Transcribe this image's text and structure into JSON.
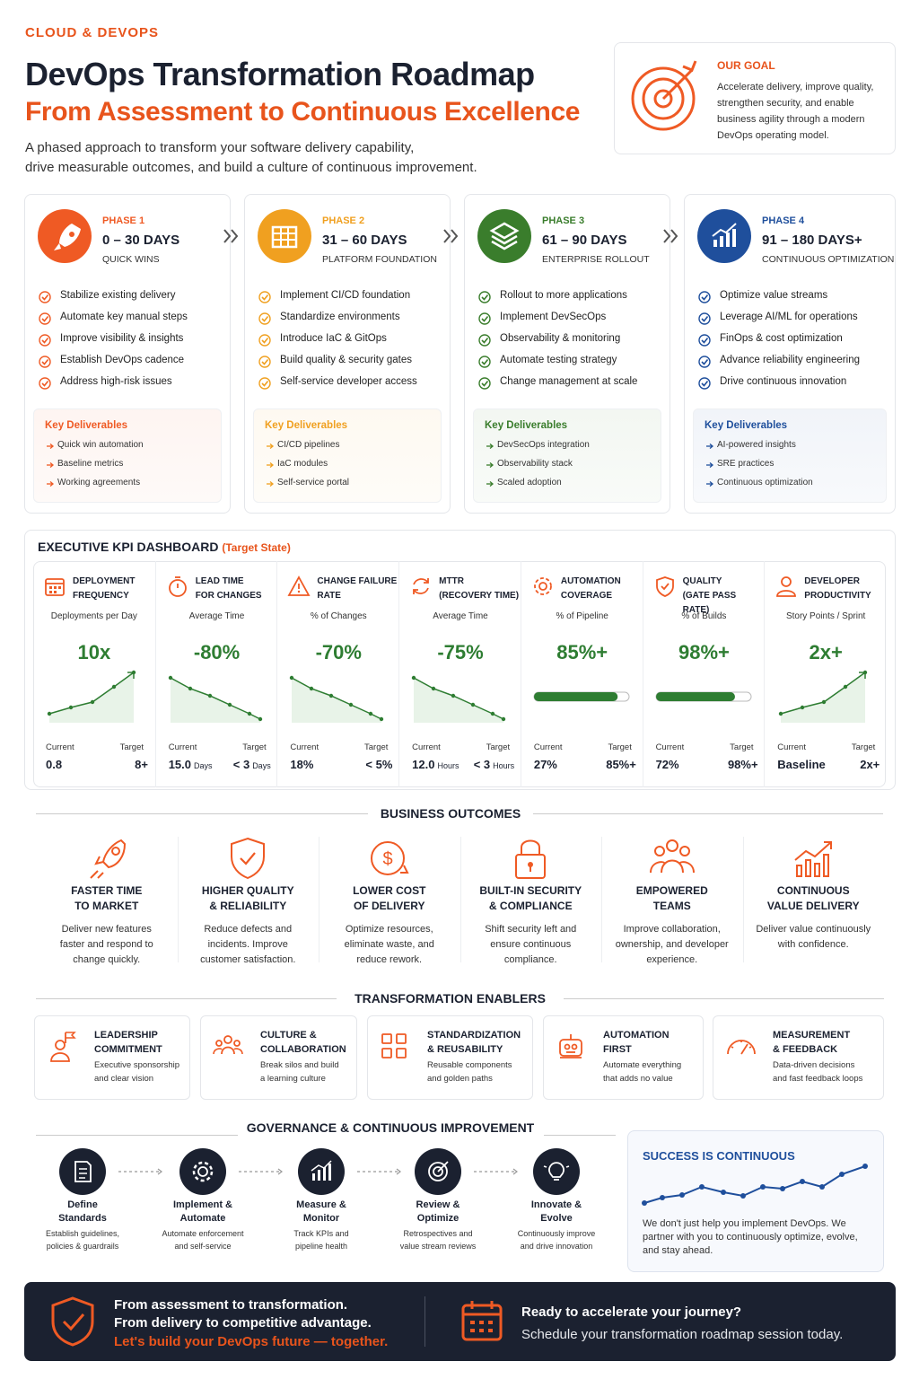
{
  "header": {
    "eyebrow": "CLOUD & DEVOPS",
    "title": "DevOps Transformation Roadmap",
    "subtitle": "From Assessment to Continuous Excellence",
    "description": [
      "A phased approach to transform your software delivery capability,",
      "drive measurable outcomes, and build a culture of continuous improvement."
    ]
  },
  "goal": {
    "label": "OUR GOAL",
    "text": "Accelerate delivery, improve quality, strengthen security, and enable business agility through a modern DevOps operating model."
  },
  "phases": [
    {
      "label": "PHASE 1",
      "days": "0 – 30 DAYS",
      "name": "QUICK WINS",
      "color": "#ef5a24",
      "items": [
        "Stabilize existing delivery",
        "Automate key manual steps",
        "Improve visibility & insights",
        "Establish DevOps cadence",
        "Address high-risk issues"
      ],
      "deliverables_title": "Key Deliverables",
      "deliverables": [
        "Quick win automation",
        "Baseline metrics",
        "Working agreements"
      ]
    },
    {
      "label": "PHASE 2",
      "days": "31 – 60 DAYS",
      "name": "PLATFORM FOUNDATION",
      "color": "#f0a020",
      "items": [
        "Implement CI/CD foundation",
        "Standardize environments",
        "Introduce IaC & GitOps",
        "Build quality & security gates",
        "Self-service developer access"
      ],
      "deliverables_title": "Key Deliverables",
      "deliverables": [
        "CI/CD pipelines",
        "IaC modules",
        "Self-service portal"
      ]
    },
    {
      "label": "PHASE 3",
      "days": "61 – 90 DAYS",
      "name": "ENTERPRISE ROLLOUT",
      "color": "#3a7d2c",
      "items": [
        "Rollout to more applications",
        "Implement DevSecOps",
        "Observability & monitoring",
        "Automate testing strategy",
        "Change management at scale"
      ],
      "deliverables_title": "Key Deliverables",
      "deliverables": [
        "DevSecOps integration",
        "Observability stack",
        "Scaled adoption"
      ]
    },
    {
      "label": "PHASE 4",
      "days": "91 – 180 DAYS+",
      "name": "CONTINUOUS OPTIMIZATION",
      "color": "#1f4f9c",
      "items": [
        "Optimize value streams",
        "Leverage AI/ML for operations",
        "FinOps & cost optimization",
        "Advance reliability engineering",
        "Drive continuous innovation"
      ],
      "deliverables_title": "Key Deliverables",
      "deliverables": [
        "AI-powered insights",
        "SRE practices",
        "Continuous optimization"
      ]
    }
  ],
  "kpi": {
    "title": "EXECUTIVE KPI DASHBOARD",
    "title_note": "(Target State)",
    "current_label": "Current",
    "target_label": "Target",
    "cards": [
      {
        "title": [
          "DEPLOYMENT",
          "FREQUENCY"
        ],
        "subtitle": "Deployments per Day",
        "headline": "10x",
        "current": "0.8",
        "target": "8+"
      },
      {
        "title": [
          "LEAD TIME",
          "FOR CHANGES"
        ],
        "subtitle": "Average Time",
        "headline": "-80%",
        "current": "15.0",
        "current_unit": "Days",
        "target": "< 3",
        "target_unit": "Days"
      },
      {
        "title": [
          "CHANGE FAILURE",
          "RATE"
        ],
        "subtitle": "% of Changes",
        "headline": "-70%",
        "current": "18%",
        "target": "< 5%"
      },
      {
        "title": [
          "MTTR",
          "(RECOVERY TIME)"
        ],
        "subtitle": "Average Time",
        "headline": "-75%",
        "current": "12.0",
        "current_unit": "Hours",
        "target": "< 3",
        "target_unit": "Hours"
      },
      {
        "title": [
          "AUTOMATION",
          "COVERAGE"
        ],
        "subtitle": "% of Pipeline",
        "headline": "85%+",
        "current": "27%",
        "target": "85%+"
      },
      {
        "title": [
          "QUALITY",
          "(GATE PASS RATE)"
        ],
        "subtitle": "% of Builds",
        "headline": "98%+",
        "current": "72%",
        "target": "98%+"
      },
      {
        "title": [
          "DEVELOPER",
          "PRODUCTIVITY"
        ],
        "subtitle": "Story Points / Sprint",
        "headline": "2x+",
        "current": "Baseline",
        "target": "2x+"
      }
    ]
  },
  "outcomes": {
    "title": "BUSINESS OUTCOMES",
    "items": [
      {
        "title": [
          "FASTER TIME",
          "TO MARKET"
        ],
        "text": "Deliver new features faster and respond to change quickly."
      },
      {
        "title": [
          "HIGHER QUALITY",
          "& RELIABILITY"
        ],
        "text": "Reduce defects and incidents. Improve customer satisfaction."
      },
      {
        "title": [
          "LOWER COST",
          "OF DELIVERY"
        ],
        "text": "Optimize resources, eliminate waste, and reduce rework."
      },
      {
        "title": [
          "BUILT-IN SECURITY",
          "& COMPLIANCE"
        ],
        "text": "Shift security left and ensure continuous compliance."
      },
      {
        "title": [
          "EMPOWERED",
          "TEAMS"
        ],
        "text": "Improve collaboration, ownership, and developer experience."
      },
      {
        "title": [
          "CONTINUOUS",
          "VALUE DELIVERY"
        ],
        "text": "Deliver value continuously with confidence."
      }
    ]
  },
  "enablers": {
    "title": "TRANSFORMATION ENABLERS",
    "items": [
      {
        "title": [
          "LEADERSHIP",
          "COMMITMENT"
        ],
        "text": [
          "Executive sponsorship",
          "and clear vision"
        ]
      },
      {
        "title": [
          "CULTURE &",
          "COLLABORATION"
        ],
        "text": [
          "Break silos and build",
          "a learning culture"
        ]
      },
      {
        "title": [
          "STANDARDIZATION",
          "& REUSABILITY"
        ],
        "text": [
          "Reusable components",
          "and golden paths"
        ]
      },
      {
        "title": [
          "AUTOMATION",
          "FIRST"
        ],
        "text": [
          "Automate everything",
          "that adds no value"
        ]
      },
      {
        "title": [
          "MEASUREMENT",
          "& FEEDBACK"
        ],
        "text": [
          "Data-driven decisions",
          "and fast feedback loops"
        ]
      }
    ]
  },
  "governance": {
    "title": "GOVERNANCE & CONTINUOUS IMPROVEMENT",
    "steps": [
      {
        "title": [
          "Define",
          "Standards"
        ],
        "text": [
          "Establish guidelines,",
          "policies & guardrails"
        ]
      },
      {
        "title": [
          "Implement &",
          "Automate"
        ],
        "text": [
          "Automate enforcement",
          "and self-service"
        ]
      },
      {
        "title": [
          "Measure &",
          "Monitor"
        ],
        "text": [
          "Track KPIs and",
          "pipeline health"
        ]
      },
      {
        "title": [
          "Review &",
          "Optimize"
        ],
        "text": [
          "Retrospectives and",
          "value stream reviews"
        ]
      },
      {
        "title": [
          "Innovate &",
          "Evolve"
        ],
        "text": [
          "Continuously improve",
          "and drive innovation"
        ]
      }
    ]
  },
  "success": {
    "title": "SUCCESS IS CONTINUOUS",
    "text": "We don't just help you implement DevOps. We partner with you to continuously optimize, evolve, and stay ahead."
  },
  "footer": {
    "left": [
      "From assessment to transformation.",
      "From delivery to competitive advantage.",
      "Let's build your DevOps future — together."
    ],
    "right_title": "Ready to accelerate your journey?",
    "right_text": "Schedule your transformation roadmap session today."
  }
}
